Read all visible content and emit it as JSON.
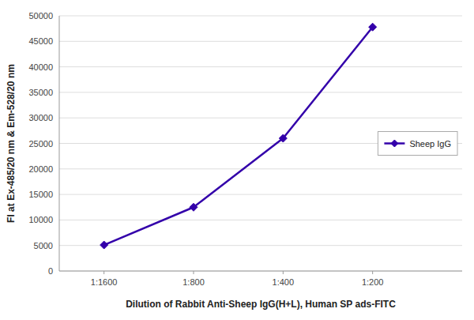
{
  "chart_data": {
    "type": "line",
    "xlabel": "Dilution of Rabbit Anti-Sheep IgG(H+L), Human SP ads-FITC",
    "ylabel": "FI at Ex-485/20 nm & Em-528/20 nm",
    "x": [
      1,
      2,
      3,
      4
    ],
    "series": [
      {
        "name": "Sheep IgG",
        "color": "#3300aa",
        "marker": "diamond",
        "values": [
          5100,
          12500,
          26000,
          47800
        ]
      }
    ],
    "xlim": [
      0.5,
      5.0
    ],
    "xticks": [
      {
        "value": 1,
        "label": "1:1600"
      },
      {
        "value": 2,
        "label": "1:800"
      },
      {
        "value": 3,
        "label": "1:400"
      },
      {
        "value": 4,
        "label": "1:200"
      }
    ],
    "ylim": [
      0,
      50000
    ],
    "yticks": [
      0,
      5000,
      10000,
      15000,
      20000,
      25000,
      30000,
      35000,
      40000,
      45000,
      50000
    ],
    "grid": true,
    "legend": "right"
  }
}
